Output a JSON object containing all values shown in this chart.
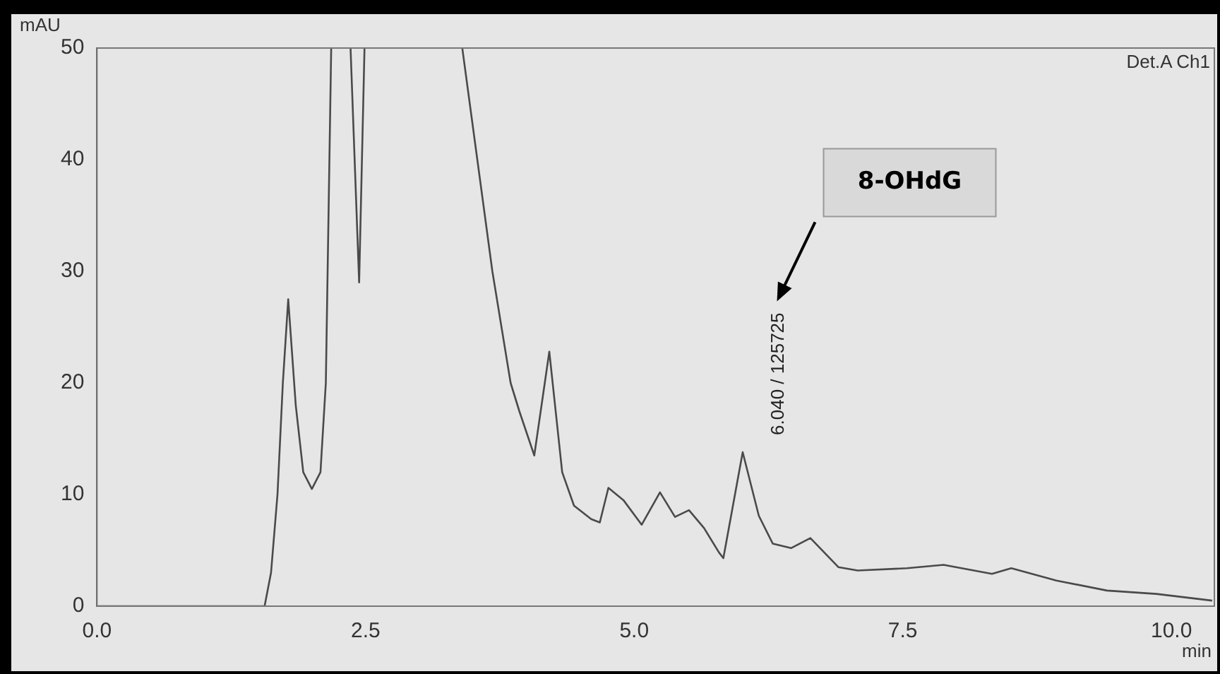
{
  "chart_data": {
    "type": "line",
    "xlabel": "min",
    "ylabel": "mAU",
    "x": [
      0,
      1.56,
      1.62,
      1.68,
      1.73,
      1.78,
      1.85,
      1.92,
      2.0,
      2.08,
      2.13,
      2.18,
      2.3,
      2.36,
      2.44,
      2.49,
      3.0,
      3.4,
      3.54,
      3.68,
      3.85,
      3.93,
      4.07,
      4.21,
      4.33,
      4.44,
      4.6,
      4.68,
      4.76,
      4.9,
      5.07,
      5.24,
      5.38,
      5.51,
      5.65,
      5.79,
      5.83,
      6.01,
      6.16,
      6.29,
      6.46,
      6.64,
      6.9,
      7.08,
      7.54,
      7.88,
      8.33,
      8.51,
      8.93,
      9.4,
      9.86,
      10.38
    ],
    "series": [
      {
        "color": "#4a4a4a",
        "values": [
          0,
          0,
          3,
          10,
          20,
          27.5,
          18,
          12,
          10.5,
          12,
          20,
          50,
          null,
          50,
          29,
          50,
          null,
          50,
          40,
          30,
          20,
          17.5,
          13.5,
          22.8,
          12,
          9,
          7.8,
          7.5,
          10.6,
          9.5,
          7.3,
          10.2,
          8,
          8.6,
          7,
          4.8,
          4.3,
          13.8,
          8.1,
          5.6,
          5.2,
          6.1,
          3.5,
          3.2,
          3.4,
          3.7,
          2.9,
          3.4,
          2.3,
          1.4,
          1.1,
          0.5
        ]
      }
    ],
    "xlim": [
      0,
      10.4
    ],
    "ylim": [
      0,
      50
    ],
    "xticks": [
      {
        "value": 0,
        "label": "0.0"
      },
      {
        "value": 2.5,
        "label": "2.5"
      },
      {
        "value": 5,
        "label": "5.0"
      },
      {
        "value": 7.5,
        "label": "7.5"
      },
      {
        "value": 10,
        "label": "10.0"
      }
    ],
    "yticks": [
      0,
      10,
      20,
      30,
      40,
      50
    ],
    "grid": false,
    "legend": false,
    "marker": "none",
    "line_style": "solid",
    "annotations": [
      "Det.A Ch1",
      {
        "text": "6.040 / 125725",
        "x": 6.04,
        "y": 13.8
      },
      "8-OHdG"
    ]
  }
}
